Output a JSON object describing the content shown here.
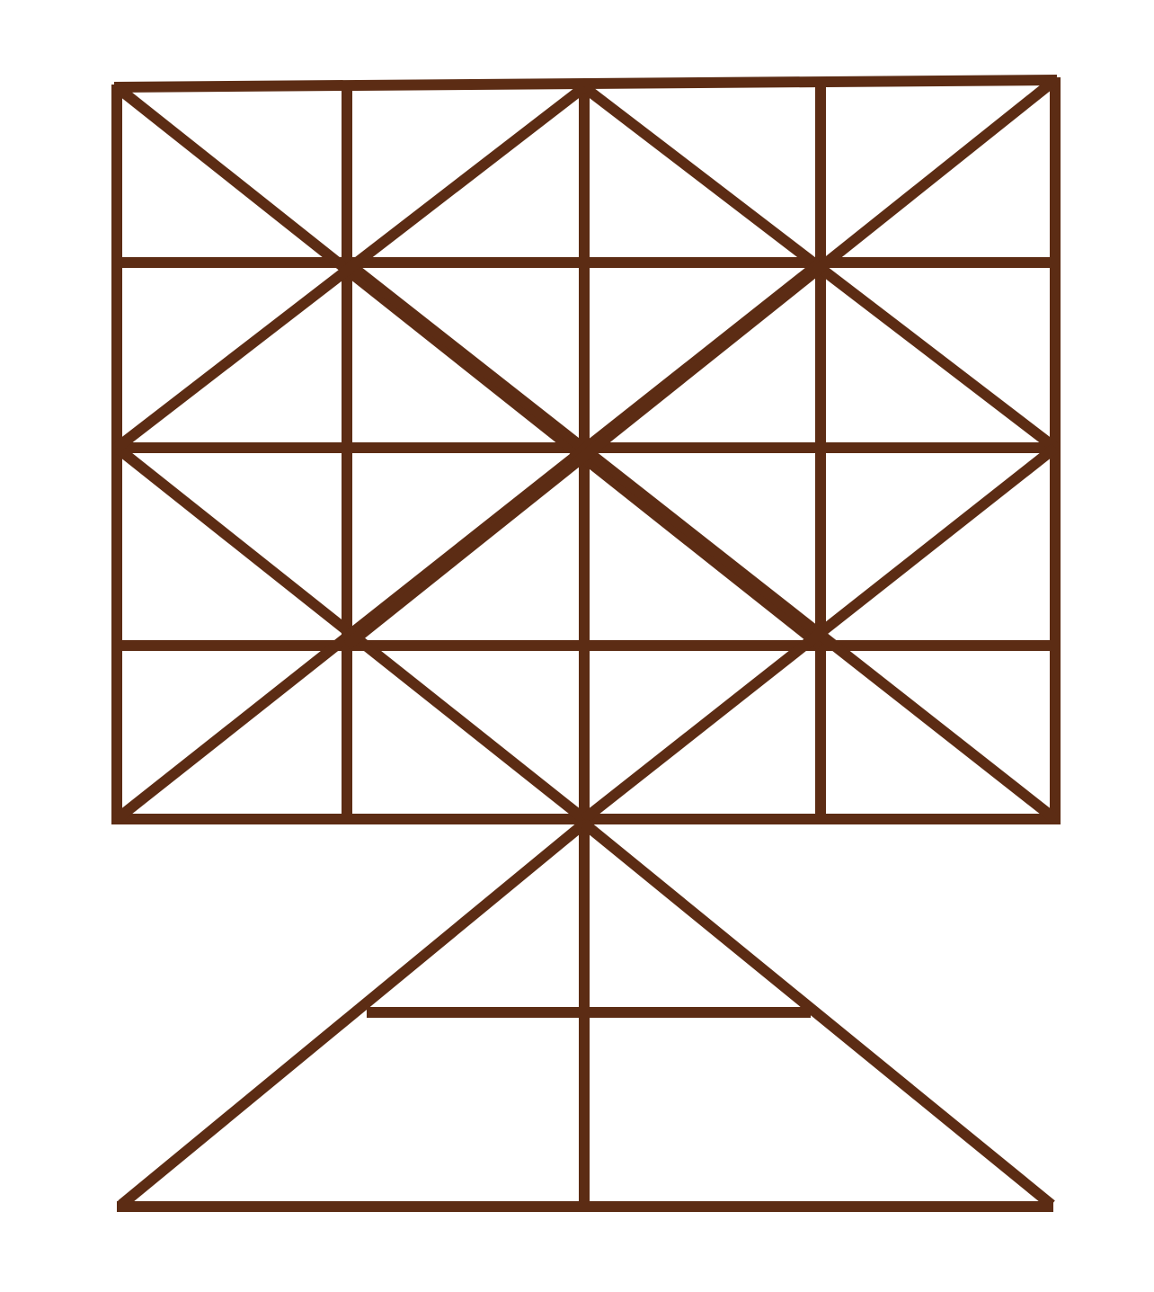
{
  "figure": {
    "stroke_color": "#5c2c14",
    "background_color": "#ffffff",
    "text": []
  }
}
